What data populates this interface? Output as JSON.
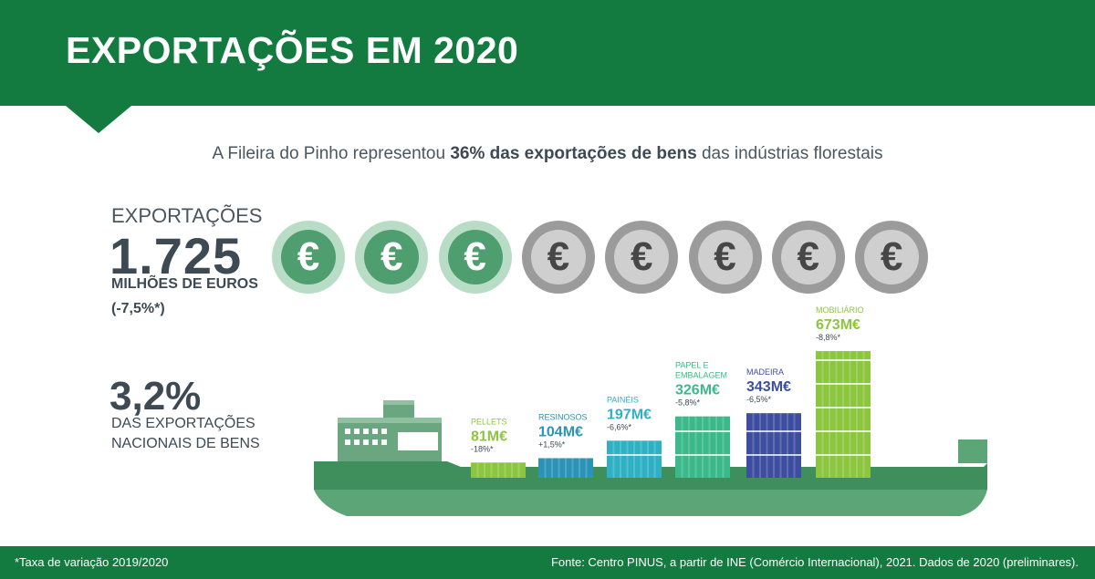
{
  "header": {
    "title": "EXPORTAÇÕES EM 2020"
  },
  "subtitle": {
    "prefix": "A Fileira do Pinho representou ",
    "highlight": "36% das exportações de bens",
    "suffix": " das indústrias florestais"
  },
  "exports": {
    "label": "EXPORTAÇÕES",
    "value": "1.725",
    "unit": "MILHÕES DE EUROS",
    "variation": "(-7,5%*)"
  },
  "national": {
    "value": "3,2%",
    "line1": "DAS EXPORTAÇÕES",
    "line2": "NACIONAIS DE BENS"
  },
  "coins": {
    "symbol": "€",
    "total": 8,
    "highlighted": 3
  },
  "chart_data": {
    "type": "bar",
    "categories": [
      "PELLETS",
      "RESINOSOS",
      "PAINÉIS",
      "PAPEL E EMBALAGEM",
      "MADEIRA",
      "MOBILIÁRIO"
    ],
    "value_labels": [
      "81M€",
      "104M€",
      "197M€",
      "326M€",
      "343M€",
      "673M€"
    ],
    "change_labels": [
      "-18%*",
      "+1,5%*",
      "-6,6%*",
      "-5,8%*",
      "-6,5%*",
      "-8,8%*"
    ],
    "values": [
      81,
      104,
      197,
      326,
      343,
      673
    ],
    "unit": "M€",
    "colors": [
      "#8cc63f",
      "#2a93b7",
      "#2fb0c4",
      "#3bb98a",
      "#3d4ea0",
      "#8cc63f"
    ]
  },
  "footer": {
    "note": "*Taxa de variação 2019/2020",
    "source": "Fonte: Centro PINUS, a partir de INE (Comércio Internacional), 2021. Dados de 2020 (preliminares)."
  },
  "colors": {
    "brand_green": "#137a40",
    "text_dark": "#3d4a54",
    "hull_dark": "#3e8f5c",
    "hull_light": "#5ba577"
  }
}
